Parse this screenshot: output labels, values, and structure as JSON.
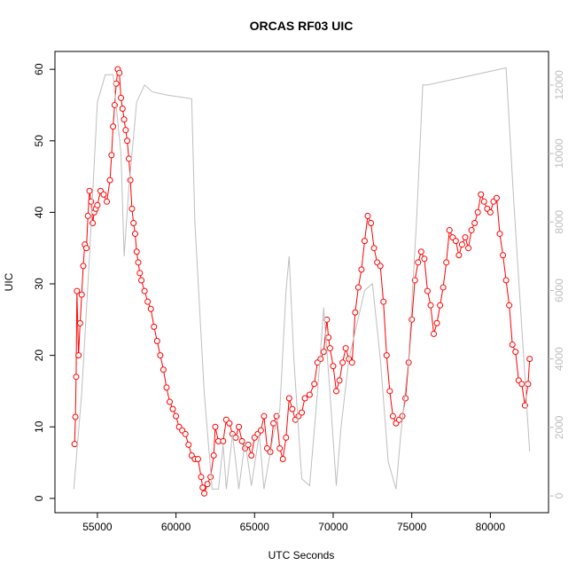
{
  "chart_data": {
    "type": "line",
    "title": "ORCAS RF03 UIC",
    "x_label": "UTC Seconds",
    "y_label": "UIC",
    "xlim": [
      52300,
      83700
    ],
    "ylim": [
      -2,
      62.5
    ],
    "y2lim": [
      -490,
      12980
    ],
    "xticks": [
      55000,
      60000,
      65000,
      70000,
      75000,
      80000
    ],
    "yticks": [
      0,
      10,
      20,
      30,
      40,
      50,
      60
    ],
    "y2ticks": [
      0,
      2000,
      4000,
      6000,
      8000,
      10000,
      12000
    ],
    "series": [
      {
        "color": "#ff0000",
        "markers": true,
        "axis": "y",
        "x": [
          53550,
          53600,
          53650,
          53700,
          53800,
          53900,
          54000,
          54100,
          54200,
          54300,
          54400,
          54500,
          54600,
          54700,
          54800,
          54900,
          55000,
          55200,
          55400,
          55600,
          55800,
          55900,
          56000,
          56100,
          56200,
          56300,
          56400,
          56500,
          56600,
          56700,
          56800,
          56900,
          57000,
          57100,
          57200,
          57300,
          57400,
          57500,
          57600,
          57700,
          57800,
          58000,
          58200,
          58400,
          58600,
          58800,
          59000,
          59200,
          59400,
          59600,
          59800,
          60000,
          60200,
          60400,
          60600,
          60800,
          61000,
          61200,
          61400,
          61600,
          61700,
          61800,
          62000,
          62200,
          62400,
          62500,
          62700,
          63000,
          63200,
          63400,
          63600,
          63800,
          64000,
          64200,
          64400,
          64600,
          64800,
          65000,
          65200,
          65400,
          65600,
          65800,
          66000,
          66200,
          66400,
          66600,
          66800,
          67000,
          67200,
          67400,
          67600,
          67800,
          68000,
          68200,
          68500,
          68800,
          69000,
          69200,
          69400,
          69600,
          69700,
          69800,
          70000,
          70200,
          70400,
          70600,
          70800,
          71000,
          71200,
          71400,
          71600,
          71800,
          72000,
          72200,
          72400,
          72600,
          72800,
          73000,
          73200,
          73400,
          73600,
          73800,
          74000,
          74200,
          74400,
          74600,
          74800,
          75000,
          75200,
          75400,
          75600,
          75800,
          76000,
          76200,
          76400,
          76600,
          76800,
          77000,
          77200,
          77400,
          77600,
          77800,
          78000,
          78200,
          78400,
          78600,
          78800,
          79000,
          79200,
          79400,
          79600,
          79800,
          80000,
          80200,
          80400,
          80600,
          80800,
          81000,
          81200,
          81400,
          81600,
          81800,
          82000,
          82200,
          82400,
          82500
        ],
        "values": [
          7.6,
          11.4,
          17,
          29,
          20,
          24.5,
          28.5,
          32.5,
          35.5,
          35,
          39.5,
          43,
          41.5,
          38.5,
          40,
          40.5,
          41,
          43,
          42.5,
          41.5,
          44.5,
          48,
          52,
          55,
          58,
          60,
          59.5,
          56,
          54.5,
          53,
          51.5,
          50,
          47.5,
          44.5,
          40.5,
          38.5,
          37,
          34.5,
          33,
          31.5,
          30.5,
          29,
          27.5,
          26.5,
          24,
          22,
          20,
          18,
          15.5,
          13.5,
          12.5,
          11.5,
          10,
          9.5,
          9,
          7.5,
          6,
          5.5,
          5.5,
          3,
          1.5,
          0.7,
          2,
          3,
          6,
          10,
          8,
          8,
          11,
          10.5,
          9,
          8.5,
          10,
          8,
          7,
          7.5,
          6,
          8.5,
          9,
          9.5,
          11.5,
          7,
          6.5,
          10.5,
          11.5,
          7,
          5.5,
          8.5,
          14,
          12.5,
          11,
          11.5,
          12,
          14,
          14.5,
          16,
          19,
          19.5,
          20.5,
          25,
          22.5,
          21,
          18.5,
          15,
          16.5,
          19,
          21,
          19.5,
          19,
          26,
          29.5,
          32,
          36,
          39.5,
          38.5,
          35,
          33,
          32.5,
          27.5,
          20,
          15,
          11.5,
          10.5,
          11,
          11.5,
          14,
          19,
          25,
          30.5,
          33,
          34.5,
          33.5,
          29,
          27,
          23,
          24.5,
          27,
          29.5,
          33,
          37.5,
          36.5,
          36,
          34,
          35.5,
          36.5,
          35,
          37.5,
          38.5,
          40,
          42.5,
          41.5,
          40.5,
          40,
          41.5,
          42,
          37,
          34,
          30.5,
          27,
          21.5,
          20.5,
          16.5,
          16,
          13,
          16,
          19.5
        ]
      },
      {
        "color": "#bebebe",
        "markers": false,
        "axis": "y2",
        "x": [
          53500,
          54000,
          54500,
          55000,
          55500,
          56000,
          56500,
          56700,
          57000,
          57500,
          58000,
          58500,
          59500,
          61000,
          61200,
          61800,
          62300,
          62700,
          63000,
          63200,
          63600,
          64000,
          64400,
          64800,
          65300,
          65600,
          66200,
          66600,
          67000,
          67200,
          67500,
          68000,
          68500,
          69000,
          69400,
          69800,
          70200,
          70500,
          71000,
          71500,
          72000,
          72500,
          73000,
          73500,
          74000,
          74300,
          74800,
          75300,
          75700,
          76000,
          78000,
          81000,
          81500,
          82500
        ],
        "values": [
          200,
          3000,
          7000,
          11500,
          12300,
          12300,
          10000,
          7000,
          9000,
          11500,
          12000,
          11800,
          11700,
          11600,
          8000,
          3000,
          200,
          200,
          1500,
          200,
          1800,
          200,
          1600,
          300,
          1800,
          200,
          1800,
          2500,
          6000,
          7000,
          4000,
          500,
          300,
          3000,
          5500,
          3000,
          300,
          2000,
          4000,
          5000,
          6000,
          6200,
          4000,
          1000,
          200,
          1800,
          4000,
          8000,
          12000,
          12000,
          12200,
          12500,
          8500,
          1300
        ]
      }
    ]
  }
}
